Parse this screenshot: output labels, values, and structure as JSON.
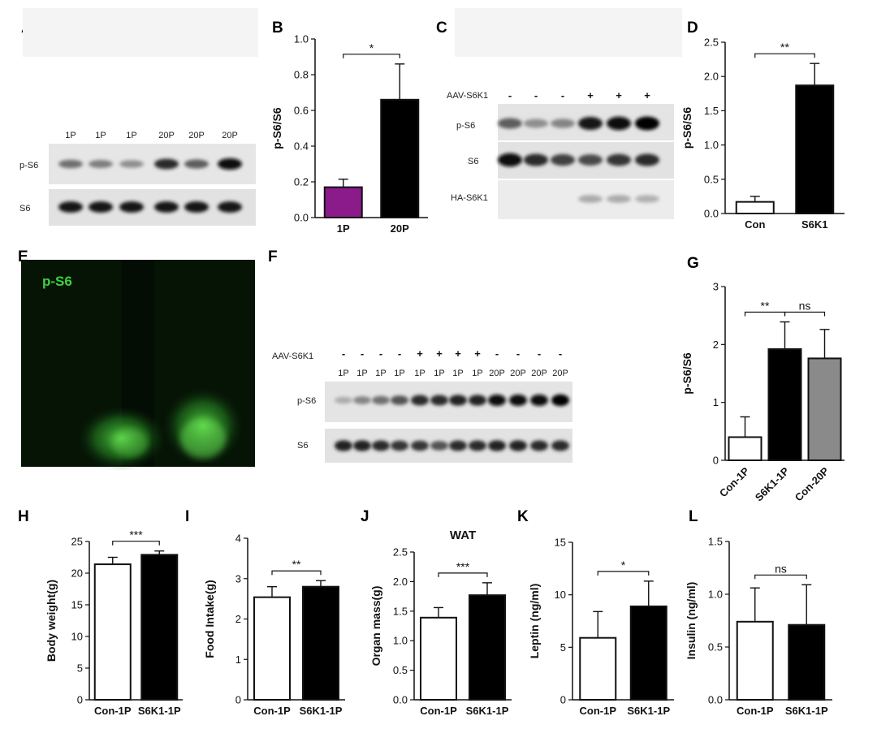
{
  "panel_letters": [
    "A",
    "B",
    "C",
    "D",
    "E",
    "F",
    "G",
    "H",
    "I",
    "J",
    "K",
    "L"
  ],
  "blot_A": {
    "lanes": [
      "1P",
      "1P",
      "1P",
      "20P",
      "20P",
      "20P"
    ],
    "rows": [
      "p-S6",
      "S6"
    ],
    "intensity": {
      "p-S6": [
        0.45,
        0.38,
        0.3,
        0.8,
        0.55,
        0.95
      ],
      "S6": [
        0.9,
        0.9,
        0.92,
        0.9,
        0.9,
        0.92
      ]
    }
  },
  "blot_C": {
    "treatment_label": "AAV-S6K1",
    "signs": [
      "-",
      "-",
      "-",
      "+",
      "+",
      "+"
    ],
    "rows": [
      "p-S6",
      "S6",
      "HA-S6K1"
    ],
    "intensity": {
      "p-S6": [
        0.55,
        0.3,
        0.35,
        0.9,
        0.95,
        1.0
      ],
      "S6": [
        0.95,
        0.8,
        0.7,
        0.65,
        0.75,
        0.8
      ],
      "HA-S6K1": [
        0,
        0,
        0,
        0.15,
        0.15,
        0.12
      ]
    }
  },
  "blot_F": {
    "treatment_label": "AAV-S6K1",
    "signs": [
      "-",
      "-",
      "-",
      "-",
      "+",
      "+",
      "+",
      "+",
      "-",
      "-",
      "-",
      "-"
    ],
    "lanes": [
      "1P",
      "1P",
      "1P",
      "1P",
      "1P",
      "1P",
      "1P",
      "1P",
      "20P",
      "20P",
      "20P",
      "20P"
    ],
    "rows": [
      "p-S6",
      "S6"
    ],
    "intensity": {
      "p-S6": [
        0.15,
        0.35,
        0.45,
        0.6,
        0.8,
        0.8,
        0.85,
        0.85,
        0.95,
        0.95,
        0.95,
        1.0
      ],
      "S6": [
        0.85,
        0.85,
        0.8,
        0.75,
        0.75,
        0.6,
        0.8,
        0.8,
        0.85,
        0.85,
        0.8,
        0.8
      ]
    }
  },
  "image_E": {
    "label": "p-S6"
  },
  "chart_data": [
    {
      "panel": "B",
      "type": "bar",
      "categories": [
        "1P",
        "20P"
      ],
      "values": [
        0.17,
        0.66
      ],
      "errors": [
        0.045,
        0.2
      ],
      "colors": [
        "#8b1a8b",
        "#000000"
      ],
      "ylabel": "p-S6/S6",
      "ylim": [
        0,
        1.0
      ],
      "yticks": [
        "0.0",
        "0.2",
        "0.4",
        "0.6",
        "0.8",
        "1.0"
      ],
      "significance": "*"
    },
    {
      "panel": "D",
      "type": "bar",
      "categories": [
        "Con",
        "S6K1"
      ],
      "values": [
        0.17,
        1.87
      ],
      "errors": [
        0.08,
        0.32
      ],
      "colors": [
        "#ffffff",
        "#000000"
      ],
      "ylabel": "p-S6/S6",
      "ylim": [
        0,
        2.5
      ],
      "yticks": [
        "0.0",
        "0.5",
        "1.0",
        "1.5",
        "2.0",
        "2.5"
      ],
      "significance": "**"
    },
    {
      "panel": "G",
      "type": "bar",
      "categories": [
        "Con-1P",
        "S6K1-1P",
        "Con-20P"
      ],
      "values": [
        0.4,
        1.92,
        1.76
      ],
      "errors": [
        0.35,
        0.47,
        0.5
      ],
      "colors": [
        "#ffffff",
        "#000000",
        "#8a8a8a"
      ],
      "ylabel": "p-S6/S6",
      "ylim": [
        0,
        3
      ],
      "yticks": [
        "0",
        "1",
        "2",
        "3"
      ],
      "significance": [
        "**",
        "ns"
      ]
    },
    {
      "panel": "H",
      "type": "bar",
      "categories": [
        "Con-1P",
        "S6K1-1P"
      ],
      "values": [
        21.4,
        22.9
      ],
      "errors": [
        1.1,
        0.6
      ],
      "colors": [
        "#ffffff",
        "#000000"
      ],
      "ylabel": "Body weight(g)",
      "ylim": [
        0,
        25
      ],
      "yticks": [
        "0",
        "5",
        "10",
        "15",
        "20",
        "25"
      ],
      "significance": "***"
    },
    {
      "panel": "I",
      "type": "bar",
      "categories": [
        "Con-1P",
        "S6K1-1P"
      ],
      "values": [
        2.54,
        2.8
      ],
      "errors": [
        0.26,
        0.15
      ],
      "colors": [
        "#ffffff",
        "#000000"
      ],
      "ylabel": "Food Intake(g)",
      "ylim": [
        0,
        4
      ],
      "yticks": [
        "0",
        "1",
        "2",
        "3",
        "4"
      ],
      "significance": "**"
    },
    {
      "panel": "J",
      "type": "bar",
      "categories": [
        "Con-1P",
        "S6K1-1P"
      ],
      "values": [
        1.39,
        1.77
      ],
      "errors": [
        0.17,
        0.21
      ],
      "colors": [
        "#ffffff",
        "#000000"
      ],
      "ylabel": "Organ mass(g)",
      "title": "WAT",
      "ylim": [
        0,
        2.5
      ],
      "yticks": [
        "0.0",
        "0.5",
        "1.0",
        "1.5",
        "2.0",
        "2.5"
      ],
      "significance": "***"
    },
    {
      "panel": "K",
      "type": "bar",
      "categories": [
        "Con-1P",
        "S6K1-1P"
      ],
      "values": [
        5.9,
        8.9
      ],
      "errors": [
        2.5,
        2.4
      ],
      "colors": [
        "#ffffff",
        "#000000"
      ],
      "ylabel": "Leptin (ng/ml)",
      "ylim": [
        0,
        15
      ],
      "yticks": [
        "0",
        "5",
        "10",
        "15"
      ],
      "significance": "*"
    },
    {
      "panel": "L",
      "type": "bar",
      "categories": [
        "Con-1P",
        "S6K1-1P"
      ],
      "values": [
        0.74,
        0.71
      ],
      "errors": [
        0.32,
        0.38
      ],
      "colors": [
        "#ffffff",
        "#000000"
      ],
      "ylabel": "Insulin (ng/ml)",
      "ylim": [
        0,
        1.5
      ],
      "yticks": [
        "0.0",
        "0.5",
        "1.0",
        "1.5"
      ],
      "significance": "ns"
    }
  ]
}
